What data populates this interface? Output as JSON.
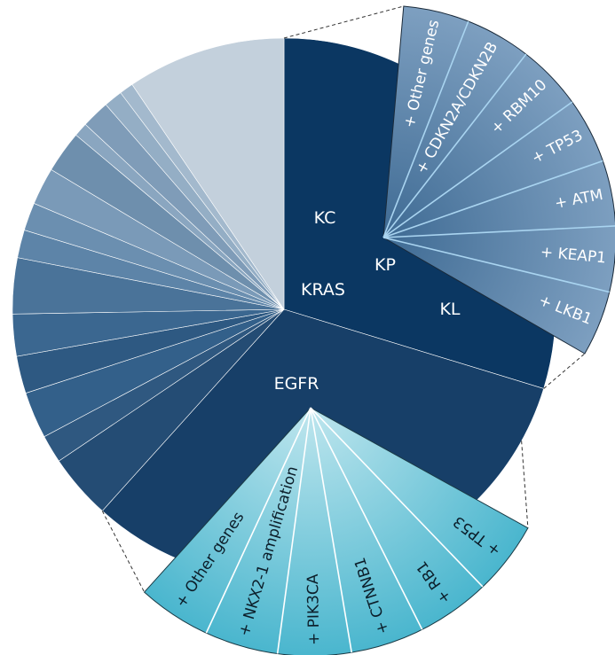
{
  "chart_data": {
    "type": "pie",
    "title": "",
    "kras_label": "KRAS",
    "egfr_label": "EGFR",
    "kras_subgroups": [
      "KC",
      "KP",
      "KL"
    ],
    "kras_comutations": [
      "+ Other genes",
      "+ CDKN2A/CDKN2B",
      "+ RBM10",
      "+ TP53",
      "+ ATM",
      "+ KEAP1",
      "+ LKB1"
    ],
    "egfr_comutations": [
      "+ Other genes",
      "+ NKX2-1 amplification",
      "+ PIK3CA",
      "+ CTNNB1",
      "+ RB1",
      "+ TP53"
    ],
    "slices": [
      {
        "label": "KRAS",
        "start_deg": 0,
        "end_deg": 107,
        "color": "#0b3762"
      },
      {
        "label": "EGFR",
        "start_deg": 107,
        "end_deg": 222,
        "color": "#173f68"
      },
      {
        "label": "",
        "start_deg": 222,
        "end_deg": 236,
        "color": "#244c74"
      },
      {
        "label": "",
        "start_deg": 236,
        "end_deg": 242,
        "color": "#2f5880"
      },
      {
        "label": "",
        "start_deg": 242,
        "end_deg": 252,
        "color": "#33608a"
      },
      {
        "label": "",
        "start_deg": 252,
        "end_deg": 260,
        "color": "#2e5982"
      },
      {
        "label": "",
        "start_deg": 260,
        "end_deg": 269,
        "color": "#3b6790"
      },
      {
        "label": "",
        "start_deg": 269,
        "end_deg": 281,
        "color": "#4a7399"
      },
      {
        "label": "",
        "start_deg": 281,
        "end_deg": 287,
        "color": "#5d84a8"
      },
      {
        "label": "",
        "start_deg": 287,
        "end_deg": 293,
        "color": "#6b8fb0"
      },
      {
        "label": "",
        "start_deg": 293,
        "end_deg": 301,
        "color": "#7a9ab8"
      },
      {
        "label": "",
        "start_deg": 301,
        "end_deg": 310,
        "color": "#6e8fad"
      },
      {
        "label": "",
        "start_deg": 310,
        "end_deg": 313,
        "color": "#8aa6c0"
      },
      {
        "label": "",
        "start_deg": 313,
        "end_deg": 319,
        "color": "#7f9cb8"
      },
      {
        "label": "",
        "start_deg": 319,
        "end_deg": 323,
        "color": "#94aec5"
      },
      {
        "label": "",
        "start_deg": 323,
        "end_deg": 326,
        "color": "#a3b9cd"
      },
      {
        "label": "",
        "start_deg": 326,
        "end_deg": 360,
        "color": "#c3d0dc"
      }
    ],
    "kras_detail_color": "#5e86ad",
    "egfr_detail_color": "#64c1d6"
  }
}
